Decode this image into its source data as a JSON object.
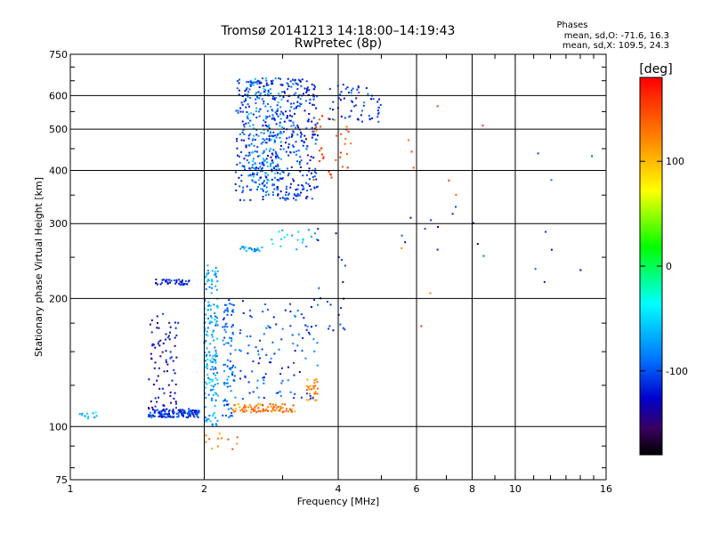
{
  "chart_data": {
    "type": "scatter",
    "title": "Tromsø 20141213 14:18:00–14:19:43",
    "subtitle": "RwPretec (8p)",
    "xlabel": "Frequency [MHz]",
    "ylabel": "Stationary phase Virtual Height [km]",
    "x_scale": "log",
    "y_scale": "log",
    "xlim": [
      1,
      16
    ],
    "ylim": [
      75,
      750
    ],
    "x_ticks": [
      "1",
      "2",
      "4",
      "6",
      "8",
      "10",
      "16"
    ],
    "x_tick_values": [
      1,
      2,
      4,
      6,
      8,
      10,
      16
    ],
    "y_ticks": [
      "75",
      "100",
      "200",
      "300",
      "400",
      "500",
      "600",
      "750"
    ],
    "y_tick_values": [
      75,
      100,
      200,
      300,
      400,
      500,
      600,
      750
    ],
    "grid": true,
    "colorbar": {
      "label": "[deg]",
      "range": [
        -180,
        180
      ],
      "ticks": [
        "100",
        "0",
        "-100"
      ],
      "tick_values": [
        100,
        0,
        -100
      ]
    },
    "legend_title": "Phases",
    "legend_lines": [
      "mean, sd,O: -71.6, 16.3",
      "mean, sd,X: 109.5, 24.3"
    ],
    "clusters": [
      {
        "x": [
          1.5,
          1.95
        ],
        "y": [
          105,
          110
        ],
        "phase": -110,
        "n": 140
      },
      {
        "x": [
          1.05,
          1.15
        ],
        "y": [
          104,
          108
        ],
        "phase": -60,
        "n": 12
      },
      {
        "x": [
          1.55,
          1.85
        ],
        "y": [
          215,
          222
        ],
        "phase": -115,
        "n": 40
      },
      {
        "x": [
          1.5,
          1.75
        ],
        "y": [
          110,
          185
        ],
        "phase": -130,
        "n": 80
      },
      {
        "x": [
          2.0,
          2.15
        ],
        "y": [
          100,
          240
        ],
        "phase": -70,
        "n": 170
      },
      {
        "x": [
          2.2,
          2.35
        ],
        "y": [
          105,
          200
        ],
        "phase": -90,
        "n": 90
      },
      {
        "x": [
          2.35,
          3.6
        ],
        "y": [
          340,
          660
        ],
        "phase": -110,
        "n": 480
      },
      {
        "x": [
          2.5,
          3.0
        ],
        "y": [
          350,
          660
        ],
        "phase": -80,
        "n": 160
      },
      {
        "x": [
          2.4,
          2.7
        ],
        "y": [
          258,
          265
        ],
        "phase": -75,
        "n": 20
      },
      {
        "x": [
          2.8,
          3.6
        ],
        "y": [
          260,
          290
        ],
        "phase": -60,
        "n": 20
      },
      {
        "x": [
          2.3,
          3.2
        ],
        "y": [
          108,
          113
        ],
        "phase": 130,
        "n": 90
      },
      {
        "x": [
          3.4,
          3.6
        ],
        "y": [
          115,
          130
        ],
        "phase": 120,
        "n": 30
      },
      {
        "x": [
          2.4,
          3.6
        ],
        "y": [
          115,
          200
        ],
        "phase": -100,
        "n": 110
      },
      {
        "x": [
          3.5,
          4.3
        ],
        "y": [
          380,
          540
        ],
        "phase": 150,
        "n": 35
      },
      {
        "x": [
          3.8,
          5.0
        ],
        "y": [
          520,
          640
        ],
        "phase": -110,
        "n": 60
      },
      {
        "x": [
          3.6,
          4.2
        ],
        "y": [
          165,
          300
        ],
        "phase": -120,
        "n": 20
      },
      {
        "x": [
          2.0,
          2.4
        ],
        "y": [
          88,
          97
        ],
        "phase": 130,
        "n": 12
      },
      {
        "x": [
          5.5,
          8.5
        ],
        "y": [
          240,
          340
        ],
        "phase": -120,
        "n": 12
      },
      {
        "x": [
          5.5,
          8.5
        ],
        "y": [
          150,
          600
        ],
        "phase": 140,
        "n": 10
      },
      {
        "x": [
          11,
          15
        ],
        "y": [
          180,
          450
        ],
        "phase": -110,
        "n": 8
      }
    ]
  }
}
